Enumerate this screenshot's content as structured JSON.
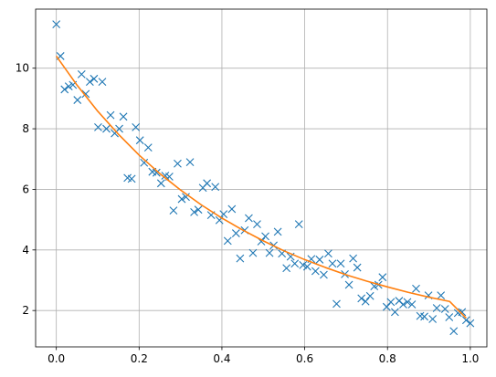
{
  "chart_data": {
    "type": "scatter",
    "title": "",
    "xlabel": "",
    "ylabel": "",
    "xlim": [
      -0.05,
      1.04
    ],
    "ylim": [
      0.8,
      11.95
    ],
    "grid": true,
    "x_ticks": [
      0.0,
      0.2,
      0.4,
      0.6,
      0.8,
      1.0
    ],
    "x_tick_labels": [
      "0.0",
      "0.2",
      "0.4",
      "0.6",
      "0.8",
      "1.0"
    ],
    "y_ticks": [
      2,
      4,
      6,
      8,
      10
    ],
    "y_tick_labels": [
      "2",
      "4",
      "6",
      "8",
      "10"
    ],
    "series": [
      {
        "marker": "x",
        "color": "#1f77b4",
        "x": [
          0.0,
          0.01,
          0.02,
          0.03,
          0.04,
          0.051,
          0.061,
          0.071,
          0.081,
          0.091,
          0.101,
          0.111,
          0.121,
          0.131,
          0.141,
          0.152,
          0.162,
          0.172,
          0.182,
          0.192,
          0.202,
          0.212,
          0.222,
          0.232,
          0.242,
          0.253,
          0.263,
          0.273,
          0.283,
          0.293,
          0.303,
          0.313,
          0.323,
          0.333,
          0.343,
          0.354,
          0.364,
          0.374,
          0.384,
          0.394,
          0.404,
          0.414,
          0.424,
          0.434,
          0.444,
          0.455,
          0.465,
          0.475,
          0.485,
          0.495,
          0.505,
          0.515,
          0.525,
          0.535,
          0.545,
          0.556,
          0.566,
          0.576,
          0.586,
          0.596,
          0.606,
          0.616,
          0.626,
          0.636,
          0.646,
          0.657,
          0.667,
          0.677,
          0.687,
          0.697,
          0.707,
          0.717,
          0.727,
          0.737,
          0.747,
          0.758,
          0.768,
          0.778,
          0.788,
          0.798,
          0.808,
          0.818,
          0.828,
          0.838,
          0.848,
          0.859,
          0.869,
          0.879,
          0.889,
          0.899,
          0.909,
          0.919,
          0.929,
          0.939,
          0.949,
          0.96,
          0.97,
          0.98,
          0.99,
          1.0
        ],
        "y": [
          11.45,
          10.4,
          9.3,
          9.4,
          9.45,
          8.95,
          9.8,
          9.15,
          9.55,
          9.65,
          8.05,
          9.55,
          8.0,
          8.45,
          7.85,
          8.0,
          8.4,
          6.38,
          6.35,
          8.05,
          7.62,
          6.88,
          7.38,
          6.58,
          6.55,
          6.2,
          6.45,
          6.42,
          5.3,
          6.85,
          5.68,
          5.75,
          6.9,
          5.25,
          5.33,
          6.05,
          6.2,
          5.15,
          6.08,
          4.98,
          5.18,
          4.3,
          5.35,
          4.55,
          3.72,
          4.65,
          5.05,
          3.9,
          4.85,
          4.28,
          4.45,
          3.9,
          4.15,
          4.6,
          3.88,
          3.4,
          3.78,
          3.55,
          4.85,
          3.5,
          3.45,
          3.7,
          3.3,
          3.68,
          3.18,
          3.88,
          3.55,
          2.22,
          3.55,
          3.2,
          2.85,
          3.72,
          3.42,
          2.4,
          2.3,
          2.48,
          2.8,
          2.85,
          3.1,
          2.12,
          2.28,
          1.95,
          2.32,
          2.2,
          2.28,
          2.2,
          2.72,
          1.82,
          1.8,
          2.5,
          1.72,
          2.08,
          2.5,
          2.05,
          1.78,
          1.32,
          1.92,
          1.95,
          1.68,
          1.58
        ]
      },
      {
        "marker": "line",
        "color": "#ff7f0e",
        "x": [
          0.0,
          0.05,
          0.1,
          0.15,
          0.2,
          0.25,
          0.3,
          0.35,
          0.4,
          0.45,
          0.5,
          0.55,
          0.6,
          0.65,
          0.7,
          0.75,
          0.8,
          0.85,
          0.9,
          0.95,
          0.99
        ],
        "y": [
          10.4,
          9.44,
          8.58,
          7.82,
          7.13,
          6.52,
          5.98,
          5.49,
          5.05,
          4.66,
          4.3,
          3.97,
          3.68,
          3.42,
          3.18,
          2.97,
          2.78,
          2.6,
          2.44,
          2.3,
          1.75
        ]
      }
    ]
  }
}
